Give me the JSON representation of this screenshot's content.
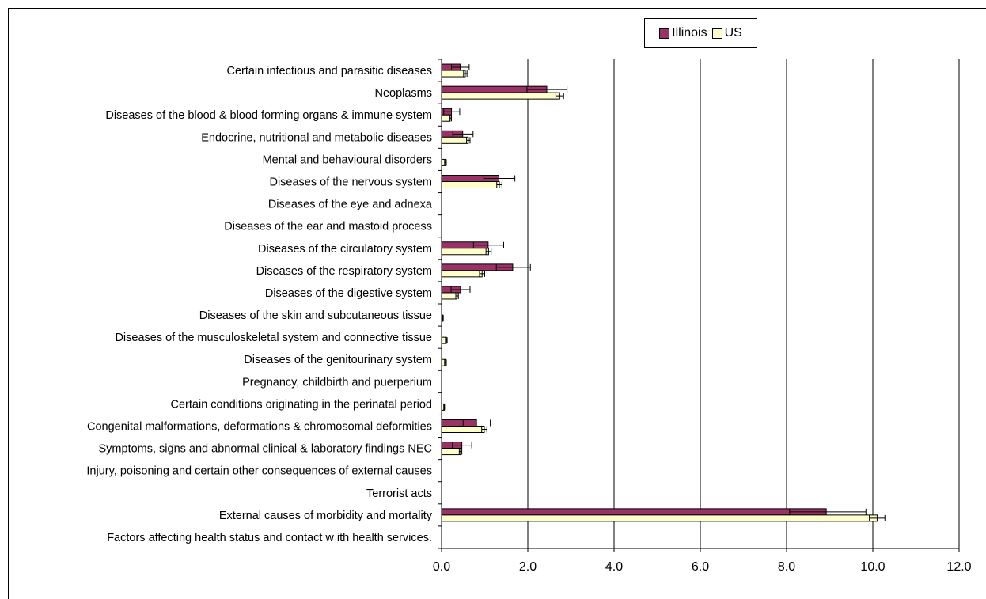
{
  "chart_data": {
    "type": "bar",
    "orientation": "horizontal",
    "title": "",
    "xlabel": "",
    "ylabel": "",
    "xlim": [
      0,
      12
    ],
    "x_ticks": [
      "0.0",
      "2.0",
      "4.0",
      "6.0",
      "8.0",
      "10.0",
      "12.0"
    ],
    "grid": true,
    "legend_position": "top",
    "categories": [
      "Certain infectious and parasitic diseases",
      "Neoplasms",
      "Diseases of the blood & blood forming organs & immune system",
      "Endocrine, nutritional and metabolic diseases",
      "Mental and behavioural disorders",
      "Diseases of the nervous system",
      "Diseases of the eye and adnexa",
      "Diseases of the ear and mastoid process",
      "Diseases of the circulatory system",
      "Diseases of the respiratory system",
      "Diseases of the digestive system",
      "Diseases of the skin and subcutaneous tissue",
      "Diseases of the musculoskeletal system and connective tissue",
      "Diseases of the genitourinary system",
      "Pregnancy, childbirth and puerperium",
      "Certain conditions originating in the perinatal period",
      "Congenital malformations, deformations & chromosomal deformities",
      "Symptoms, signs and abnormal clinical & laboratory findings NEC",
      "Injury, poisoning and certain other consequences of external causes",
      "Terrorist acts",
      "External causes of morbidity and mortality",
      "Factors affecting health status and contact w ith health services."
    ],
    "series": [
      {
        "name": "Illinois",
        "color": "#993366",
        "values": [
          0.43,
          2.44,
          0.23,
          0.49,
          0.0,
          1.33,
          0.0,
          0.0,
          1.08,
          1.65,
          0.44,
          0.0,
          0.0,
          0.0,
          0.0,
          0.0,
          0.81,
          0.47,
          0.0,
          0.0,
          8.92,
          0.0
        ],
        "error_low": [
          0.23,
          1.98,
          0.05,
          0.26,
          0.0,
          0.98,
          0.0,
          0.0,
          0.74,
          1.27,
          0.22,
          0.0,
          0.0,
          0.0,
          0.0,
          0.0,
          0.5,
          0.25,
          0.0,
          0.0,
          8.07,
          0.0
        ],
        "error_high": [
          0.64,
          2.91,
          0.42,
          0.73,
          0.0,
          1.7,
          0.0,
          0.0,
          1.44,
          2.06,
          0.66,
          0.0,
          0.0,
          0.0,
          0.0,
          0.0,
          1.13,
          0.7,
          0.0,
          0.0,
          9.84,
          0.0
        ]
      },
      {
        "name": "US",
        "color": "#ffffcc",
        "values": [
          0.55,
          2.74,
          0.2,
          0.62,
          0.09,
          1.34,
          0.0,
          0.0,
          1.09,
          0.94,
          0.36,
          0.03,
          0.11,
          0.09,
          0.0,
          0.06,
          0.99,
          0.44,
          0.0,
          0.0,
          10.1,
          0.0
        ],
        "error_low": [
          0.51,
          2.65,
          0.18,
          0.58,
          0.07,
          1.28,
          0.0,
          0.0,
          1.03,
          0.88,
          0.33,
          0.02,
          0.09,
          0.07,
          0.0,
          0.05,
          0.93,
          0.41,
          0.0,
          0.0,
          9.92,
          0.0
        ],
        "error_high": [
          0.59,
          2.83,
          0.23,
          0.66,
          0.11,
          1.4,
          0.0,
          0.0,
          1.15,
          1.0,
          0.39,
          0.04,
          0.13,
          0.11,
          0.0,
          0.07,
          1.05,
          0.47,
          0.0,
          0.0,
          10.28,
          0.0
        ]
      }
    ]
  }
}
